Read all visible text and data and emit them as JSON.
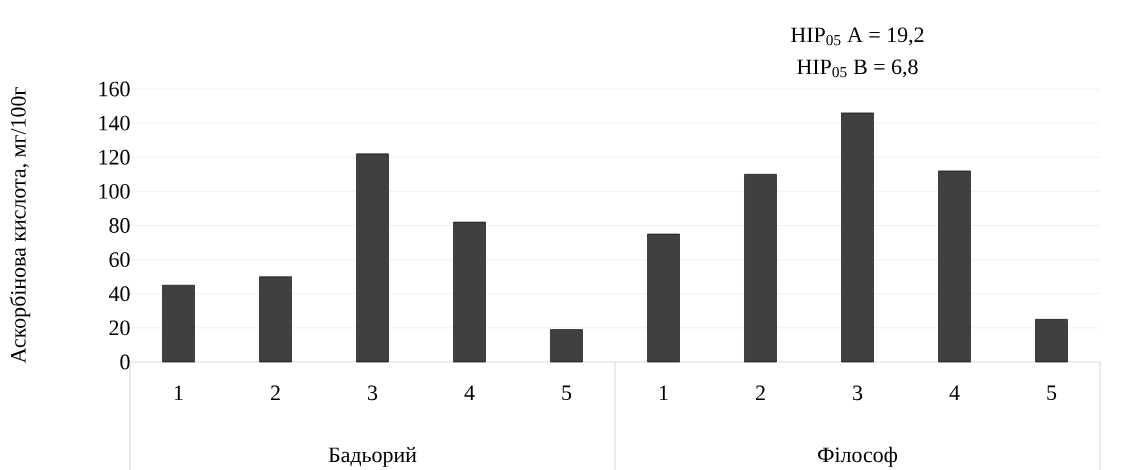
{
  "chart_data": {
    "type": "bar",
    "ylabel": "Аскорбінова кислота, мг/100г",
    "annotations": [
      "HIP$_{05}$ A = 19,2",
      "HIP$_{05}$ B = 6,8",
      "Бадьорий",
      "Філософ"
    ],
    "categories": [
      "1",
      "2",
      "3",
      "4",
      "5",
      "1",
      "2",
      "3",
      "4",
      "5"
    ],
    "values": [
      45,
      50,
      122,
      82,
      19,
      75,
      110,
      146,
      112,
      25
    ],
    "color": "#404040",
    "ylim": [
      0,
      160
    ],
    "yticks": [
      0,
      20,
      40,
      60,
      80,
      100,
      120,
      140,
      160
    ],
    "grid": "y"
  }
}
